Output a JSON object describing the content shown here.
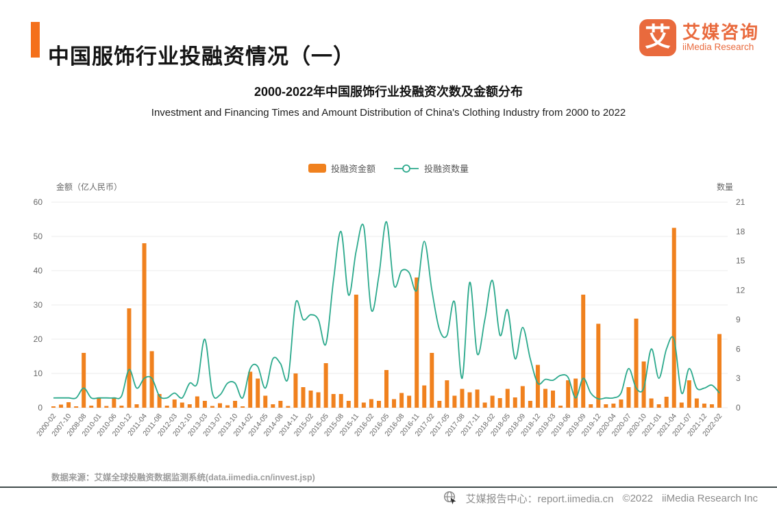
{
  "header": {
    "title": "中国服饰行业投融资情况（一）",
    "logo": {
      "glyph": "艾",
      "brand_cn": "艾媒咨询",
      "brand_en": "iiMedia Research"
    }
  },
  "chart_header": {
    "title": "2000-2022年中国服饰行业投融资次数及金额分布",
    "subtitle": "Investment and Financing Times and Amount Distribution of China's Clothing Industry from 2000 to 2022"
  },
  "colors": {
    "accent_orange": "#F4701B",
    "bar_orange": "#F0811E",
    "line_teal": "#2BA98C",
    "logo_orange": "#E96A3D",
    "grid": "#EBEBEB",
    "axis_text": "#666666",
    "muted_text": "#9C9C9C",
    "footer_text": "#8C8C8C",
    "divider": "#414C4C"
  },
  "chart_data": {
    "type": "bar",
    "combo": "bar+line",
    "title": "2000-2022年中国服饰行业投融资次数及金额分布",
    "legend_position": "top",
    "grid": true,
    "left_axis": {
      "title": "金额（亿人民币）",
      "min": 0,
      "max": 60,
      "step": 10
    },
    "right_axis": {
      "title": "数量",
      "min": 0,
      "max": 21,
      "step": 3
    },
    "x_labels": [
      "2000-02",
      "2007-10",
      "2008-08",
      "2010-01",
      "2010-06",
      "2010-12",
      "2011-04",
      "2011-08",
      "2012-03",
      "2012-10",
      "2013-03",
      "2013-07",
      "2013-10",
      "2014-02",
      "2014-05",
      "2014-08",
      "2014-11",
      "2015-02",
      "2015-05",
      "2015-08",
      "2015-11",
      "2016-02",
      "2016-05",
      "2016-08",
      "2016-11",
      "2017-02",
      "2017-05",
      "2017-08",
      "2017-11",
      "2018-02",
      "2018-05",
      "2018-09",
      "2018-12",
      "2019-03",
      "2019-06",
      "2019-09",
      "2019-12",
      "2020-04",
      "2020-07",
      "2020-10",
      "2021-01",
      "2021-04",
      "2021-07",
      "2021-12",
      "2022-02"
    ],
    "points_per_label": 2,
    "series": [
      {
        "name": "投融资金额",
        "type": "bar",
        "axis": "left",
        "values": [
          0.4,
          0.9,
          1.6,
          0.4,
          16,
          0.6,
          3,
          0.5,
          3,
          0.6,
          29,
          1,
          48,
          16.5,
          4,
          0.6,
          2.4,
          1.5,
          1,
          3.3,
          2,
          0.5,
          1.3,
          0.7,
          2,
          0.4,
          10.5,
          8.5,
          3.5,
          1,
          2,
          0.5,
          10,
          6,
          5,
          4.5,
          13,
          4,
          4,
          2,
          33,
          1.5,
          2.5,
          2,
          11,
          2.5,
          4.3,
          3.5,
          38,
          6.5,
          16,
          2,
          8,
          3.5,
          5.5,
          4.5,
          5.3,
          1.5,
          3.5,
          2.8,
          5.5,
          3,
          6.3,
          2,
          12.5,
          5.5,
          5,
          0.6,
          8,
          8.5,
          33,
          1,
          24.5,
          1,
          1.2,
          2.4,
          6,
          26,
          13.5,
          2.7,
          1,
          3.2,
          52.5,
          1.5,
          8,
          2.7,
          1.2,
          1,
          21.5
        ]
      },
      {
        "name": "投融资数量",
        "type": "line",
        "axis": "right",
        "values": [
          1,
          1,
          1,
          1,
          2,
          1,
          1,
          1,
          1,
          1.2,
          3.9,
          2,
          3,
          3,
          1.2,
          1,
          1.5,
          1,
          2.5,
          2.5,
          7,
          1.5,
          1.3,
          2.5,
          2.5,
          1,
          4,
          4.2,
          2,
          5,
          4.5,
          3,
          10.7,
          9,
          9.5,
          9,
          6.5,
          13,
          18,
          11.5,
          16,
          18.5,
          10,
          13.5,
          19,
          12.5,
          14,
          13.8,
          12,
          17,
          12,
          8,
          7.4,
          10.8,
          3,
          12.8,
          5.5,
          9,
          13,
          7.4,
          10,
          5,
          8.2,
          5,
          2.5,
          2.9,
          2.8,
          3.3,
          3.1,
          1,
          3,
          1.5,
          0.9,
          1,
          1,
          1.5,
          4,
          2,
          2,
          6,
          3,
          6,
          7,
          1.5,
          4,
          2,
          2,
          2.3,
          1.5
        ]
      }
    ]
  },
  "source": {
    "text": "数据来源：艾媒全球投融资数据监测系统(data.iimedia.cn/invest.jsp)"
  },
  "footer": {
    "center_label": "艾媒报告中心：report.iimedia.cn",
    "copyright": "©2022",
    "company": "iiMedia Research  Inc"
  }
}
